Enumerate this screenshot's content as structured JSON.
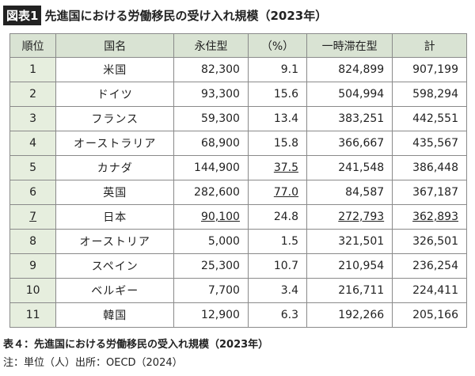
{
  "header": {
    "label": "図表1",
    "title": "先進国における労働移民の受け入れ規模（2023年）"
  },
  "table": {
    "columns": [
      "順位",
      "国名",
      "永住型",
      "（%）",
      "一時滞在型",
      "計"
    ],
    "rows": [
      [
        "1",
        "米国",
        "82,300",
        "9.1",
        "824,899",
        "907,199"
      ],
      [
        "2",
        "ドイツ",
        "93,300",
        "15.6",
        "504,994",
        "598,294"
      ],
      [
        "3",
        "フランス",
        "59,300",
        "13.4",
        "383,251",
        "442,551"
      ],
      [
        "4",
        "オーストラリア",
        "68,900",
        "15.8",
        "366,667",
        "435,567"
      ],
      [
        "5",
        "カナダ",
        "144,900",
        "37.5",
        "241,548",
        "386,448"
      ],
      [
        "6",
        "英国",
        "282,600",
        "77.0",
        "84,587",
        "367,187"
      ],
      [
        "7",
        "日本",
        "90,100",
        "24.8",
        "272,793",
        "362,893"
      ],
      [
        "8",
        "オーストリア",
        "5,000",
        "1.5",
        "321,501",
        "326,501"
      ],
      [
        "9",
        "スペイン",
        "25,300",
        "10.7",
        "210,954",
        "236,254"
      ],
      [
        "10",
        "ベルギー",
        "7,700",
        "3.4",
        "216,711",
        "224,411"
      ],
      [
        "11",
        "韓国",
        "12,900",
        "6.3",
        "192,266",
        "205,166"
      ]
    ]
  },
  "footer": {
    "caption": "表４：先進国における労働移民の受入れ規模（2023年）",
    "note": "注：単位（人）出所：OECD（2024）"
  }
}
